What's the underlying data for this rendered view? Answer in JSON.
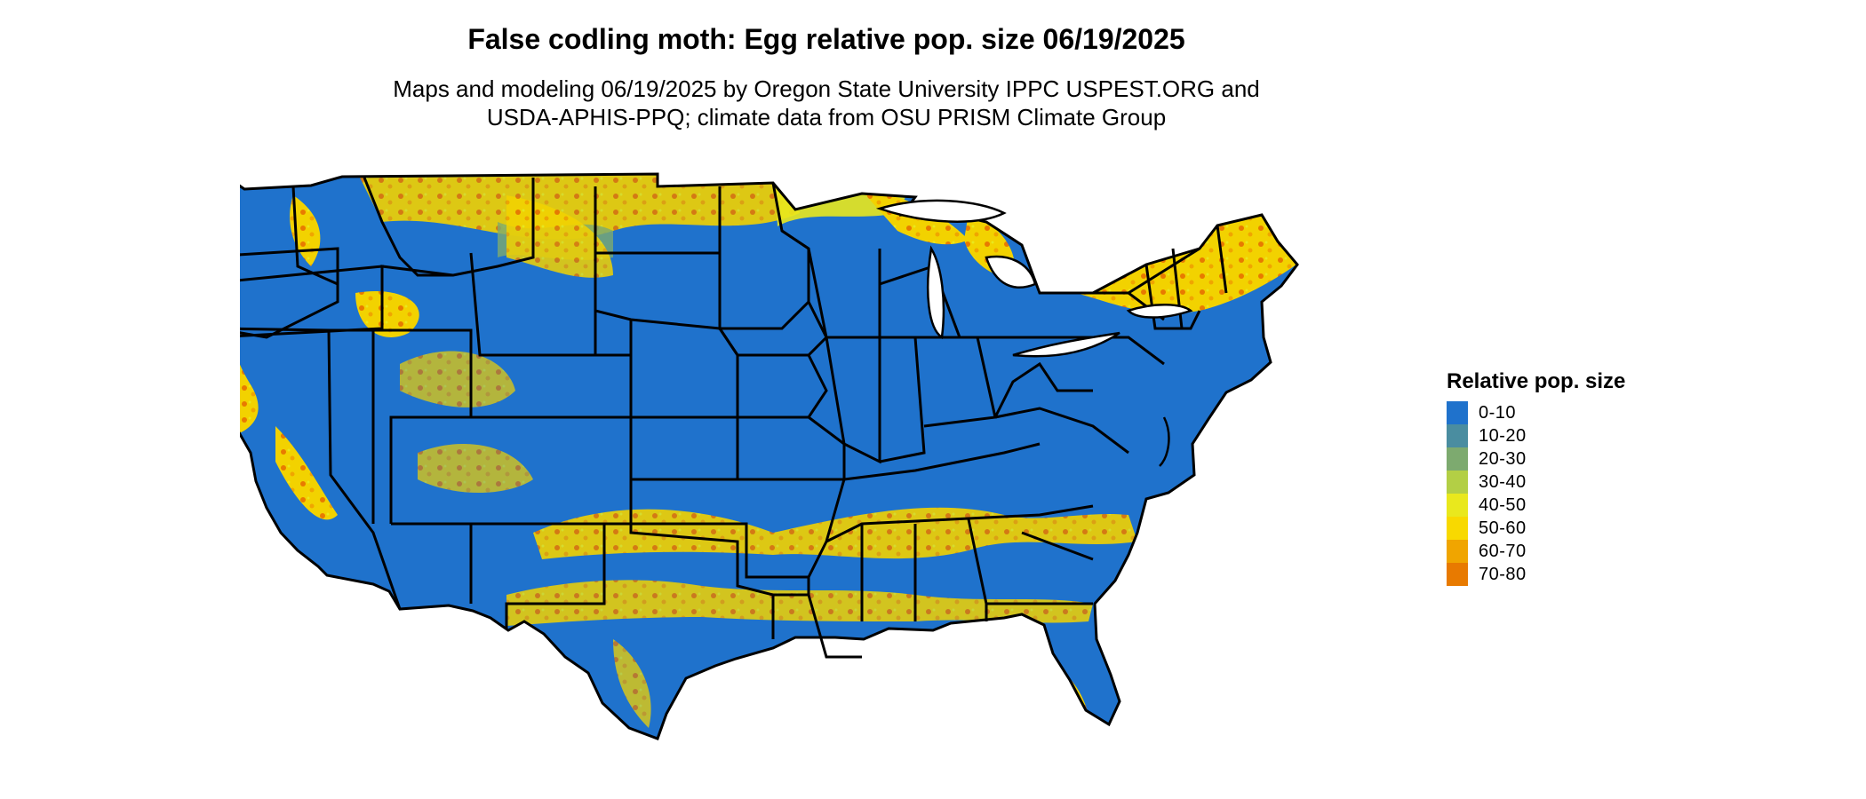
{
  "map": {
    "title": "False codling moth: Egg relative pop. size 06/19/2025",
    "subtitle_line1": "Maps and modeling 06/19/2025 by Oregon State University IPPC USPEST.ORG and",
    "subtitle_line2": "USDA-APHIS-PPQ; climate data from OSU PRISM Climate Group"
  },
  "legend": {
    "title": "Relative pop. size",
    "items": [
      {
        "label": "0-10",
        "color": "#1f72cc"
      },
      {
        "label": "10-20",
        "color": "#4a8da0"
      },
      {
        "label": "20-30",
        "color": "#7daa6f"
      },
      {
        "label": "30-40",
        "color": "#b3cf45"
      },
      {
        "label": "40-50",
        "color": "#e9e81d"
      },
      {
        "label": "50-60",
        "color": "#f8d900"
      },
      {
        "label": "60-70",
        "color": "#f0a500"
      },
      {
        "label": "70-80",
        "color": "#e87a00"
      }
    ]
  }
}
